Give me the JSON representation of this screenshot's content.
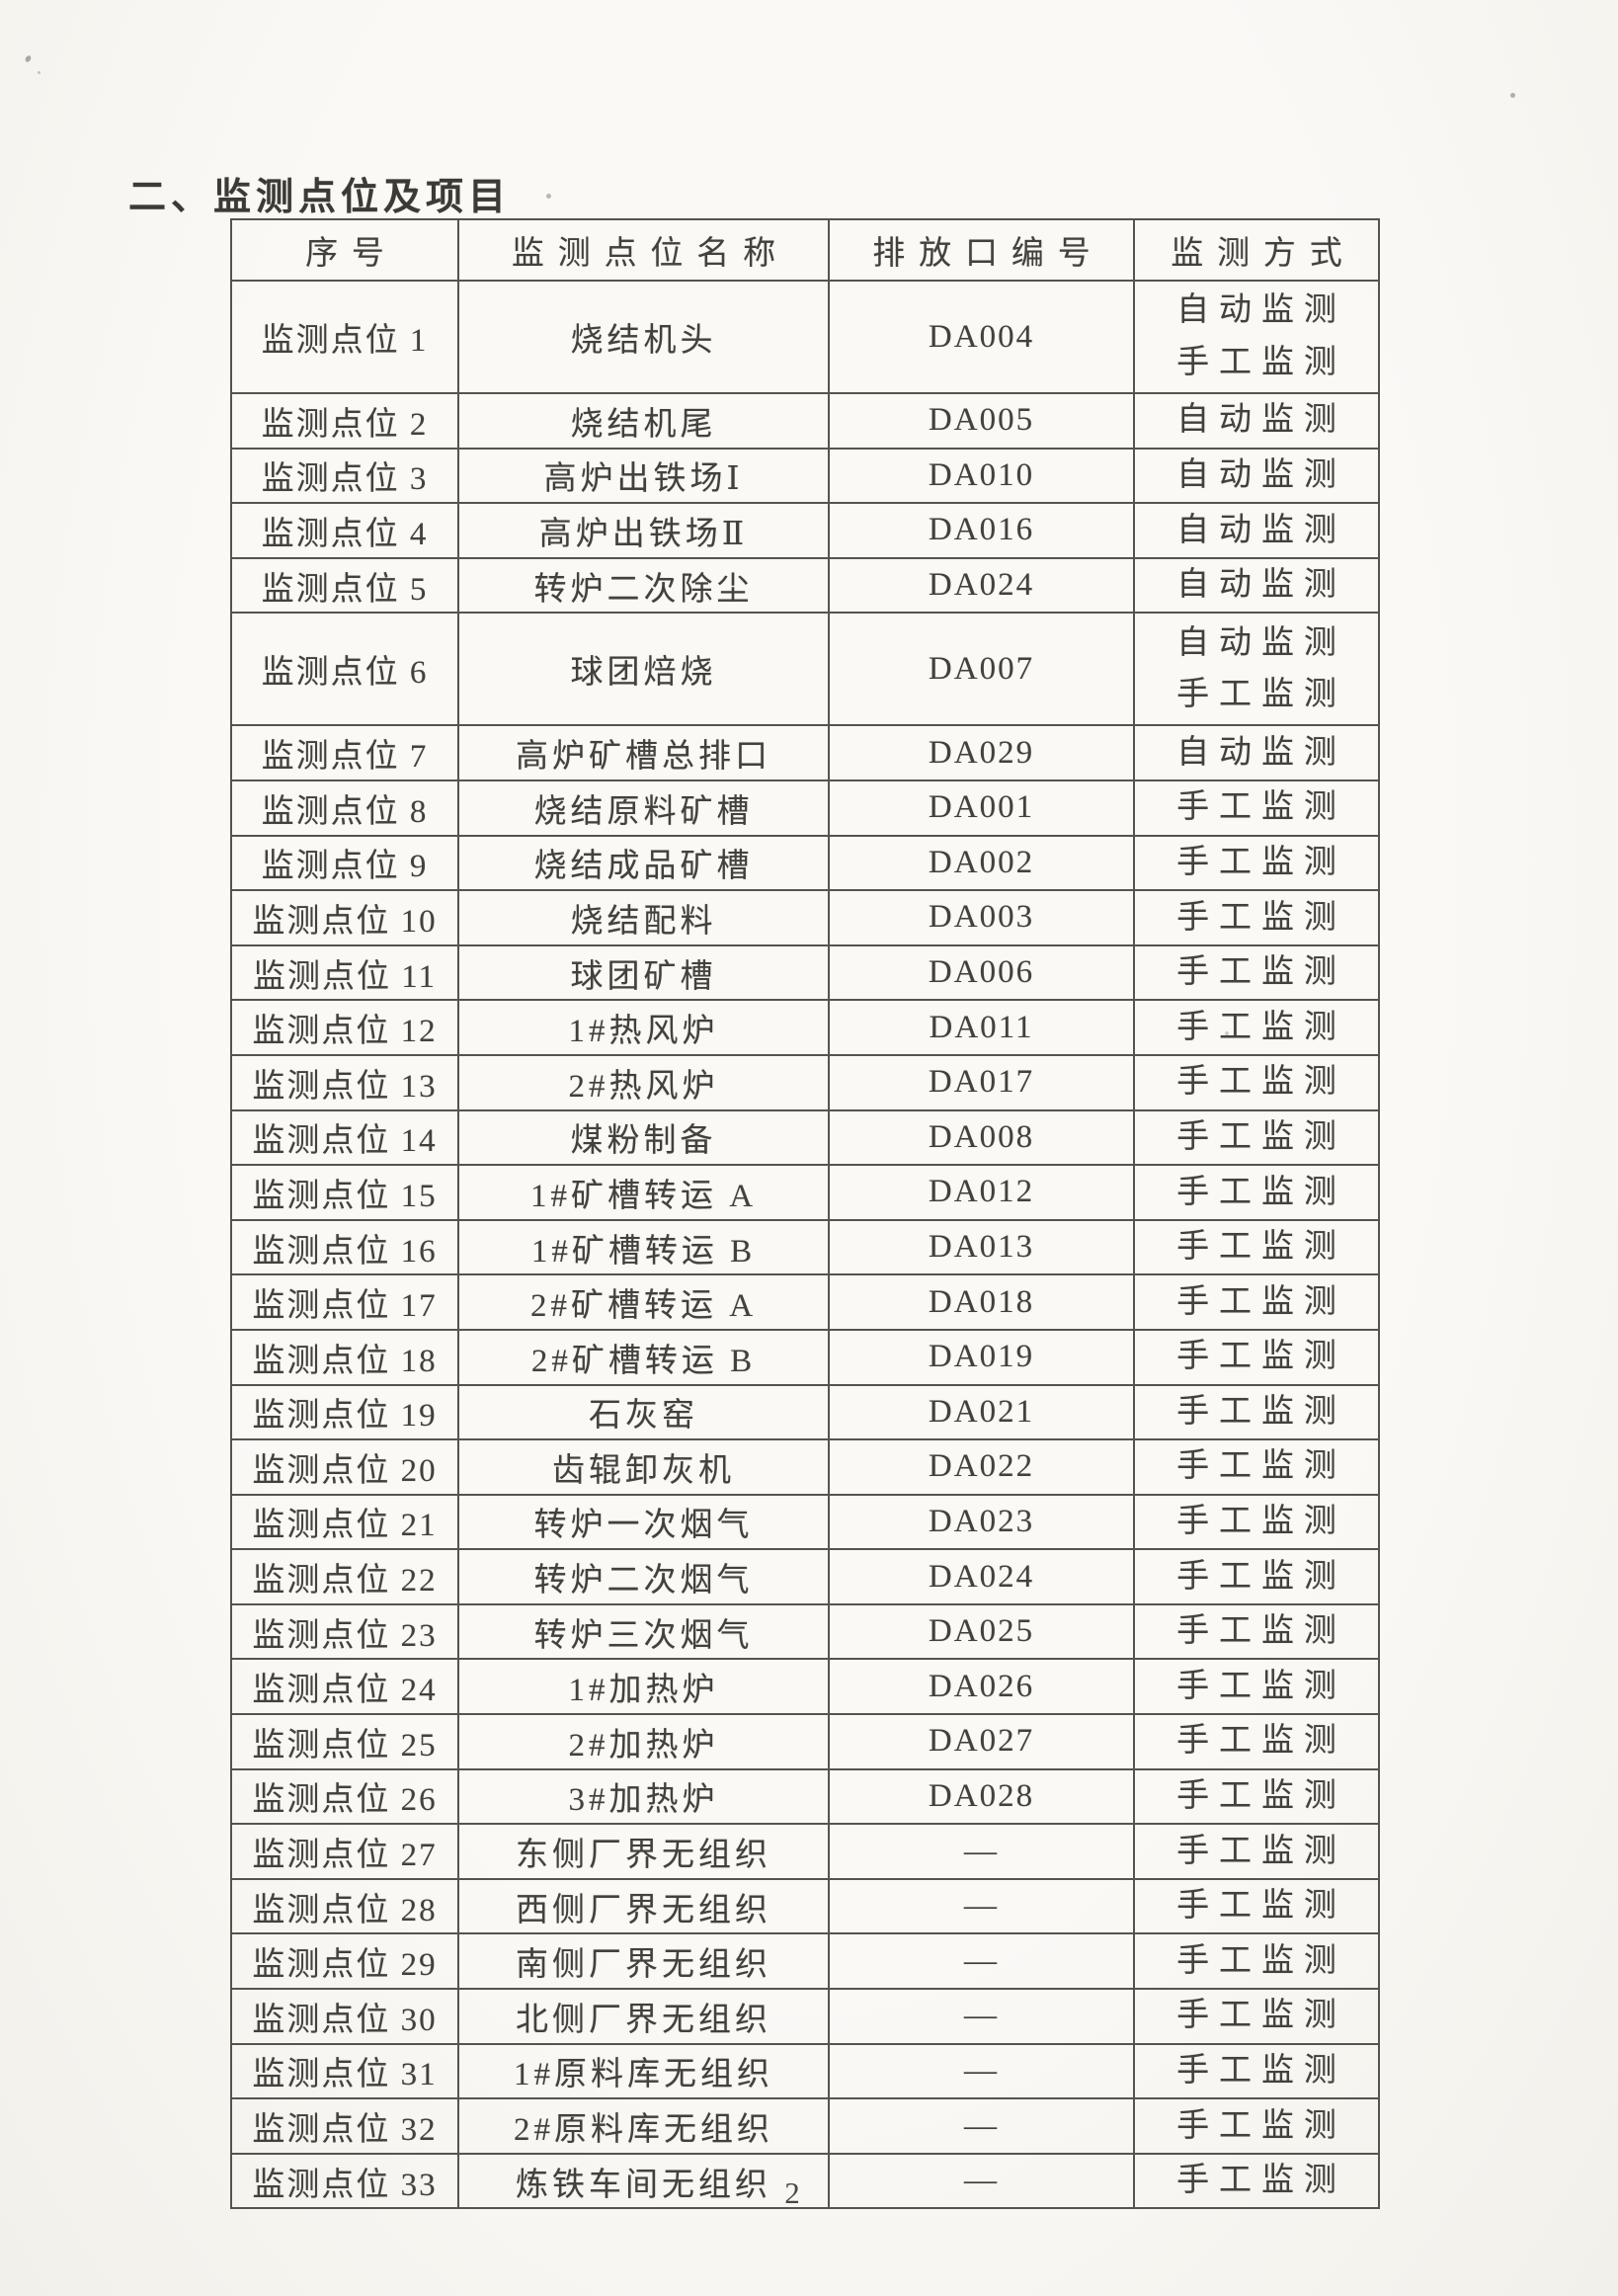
{
  "page": {
    "title": "二、监测点位及项目",
    "page_number": "2"
  },
  "table": {
    "headers": [
      "序号",
      "监测点位名称",
      "排放口编号",
      "监测方式"
    ],
    "rows": [
      {
        "seq": "监测点位 1",
        "name": "烧结机头",
        "outlet": "DA004",
        "methods": [
          "自动监测",
          "手工监测"
        ]
      },
      {
        "seq": "监测点位 2",
        "name": "烧结机尾",
        "outlet": "DA005",
        "methods": [
          "自动监测"
        ]
      },
      {
        "seq": "监测点位 3",
        "name": "高炉出铁场Ⅰ",
        "outlet": "DA010",
        "methods": [
          "自动监测"
        ]
      },
      {
        "seq": "监测点位 4",
        "name": "高炉出铁场Ⅱ",
        "outlet": "DA016",
        "methods": [
          "自动监测"
        ]
      },
      {
        "seq": "监测点位 5",
        "name": "转炉二次除尘",
        "outlet": "DA024",
        "methods": [
          "自动监测"
        ]
      },
      {
        "seq": "监测点位 6",
        "name": "球团焙烧",
        "outlet": "DA007",
        "methods": [
          "自动监测",
          "手工监测"
        ]
      },
      {
        "seq": "监测点位 7",
        "name": "高炉矿槽总排口",
        "outlet": "DA029",
        "methods": [
          "自动监测"
        ]
      },
      {
        "seq": "监测点位 8",
        "name": "烧结原料矿槽",
        "outlet": "DA001",
        "methods": [
          "手工监测"
        ]
      },
      {
        "seq": "监测点位 9",
        "name": "烧结成品矿槽",
        "outlet": "DA002",
        "methods": [
          "手工监测"
        ]
      },
      {
        "seq": "监测点位 10",
        "name": "烧结配料",
        "outlet": "DA003",
        "methods": [
          "手工监测"
        ]
      },
      {
        "seq": "监测点位 11",
        "name": "球团矿槽",
        "outlet": "DA006",
        "methods": [
          "手工监测"
        ]
      },
      {
        "seq": "监测点位 12",
        "name": "1#热风炉",
        "outlet": "DA011",
        "methods": [
          "手工监测"
        ]
      },
      {
        "seq": "监测点位 13",
        "name": "2#热风炉",
        "outlet": "DA017",
        "methods": [
          "手工监测"
        ]
      },
      {
        "seq": "监测点位 14",
        "name": "煤粉制备",
        "outlet": "DA008",
        "methods": [
          "手工监测"
        ]
      },
      {
        "seq": "监测点位 15",
        "name": "1#矿槽转运 A",
        "outlet": "DA012",
        "methods": [
          "手工监测"
        ]
      },
      {
        "seq": "监测点位 16",
        "name": "1#矿槽转运 B",
        "outlet": "DA013",
        "methods": [
          "手工监测"
        ]
      },
      {
        "seq": "监测点位 17",
        "name": "2#矿槽转运 A",
        "outlet": "DA018",
        "methods": [
          "手工监测"
        ]
      },
      {
        "seq": "监测点位 18",
        "name": "2#矿槽转运 B",
        "outlet": "DA019",
        "methods": [
          "手工监测"
        ]
      },
      {
        "seq": "监测点位 19",
        "name": "石灰窑",
        "outlet": "DA021",
        "methods": [
          "手工监测"
        ]
      },
      {
        "seq": "监测点位 20",
        "name": "齿辊卸灰机",
        "outlet": "DA022",
        "methods": [
          "手工监测"
        ]
      },
      {
        "seq": "监测点位 21",
        "name": "转炉一次烟气",
        "outlet": "DA023",
        "methods": [
          "手工监测"
        ]
      },
      {
        "seq": "监测点位 22",
        "name": "转炉二次烟气",
        "outlet": "DA024",
        "methods": [
          "手工监测"
        ]
      },
      {
        "seq": "监测点位 23",
        "name": "转炉三次烟气",
        "outlet": "DA025",
        "methods": [
          "手工监测"
        ]
      },
      {
        "seq": "监测点位 24",
        "name": "1#加热炉",
        "outlet": "DA026",
        "methods": [
          "手工监测"
        ]
      },
      {
        "seq": "监测点位 25",
        "name": "2#加热炉",
        "outlet": "DA027",
        "methods": [
          "手工监测"
        ]
      },
      {
        "seq": "监测点位 26",
        "name": "3#加热炉",
        "outlet": "DA028",
        "methods": [
          "手工监测"
        ]
      },
      {
        "seq": "监测点位 27",
        "name": "东侧厂界无组织",
        "outlet": "—",
        "methods": [
          "手工监测"
        ]
      },
      {
        "seq": "监测点位 28",
        "name": "西侧厂界无组织",
        "outlet": "—",
        "methods": [
          "手工监测"
        ]
      },
      {
        "seq": "监测点位 29",
        "name": "南侧厂界无组织",
        "outlet": "—",
        "methods": [
          "手工监测"
        ]
      },
      {
        "seq": "监测点位 30",
        "name": "北侧厂界无组织",
        "outlet": "—",
        "methods": [
          "手工监测"
        ]
      },
      {
        "seq": "监测点位 31",
        "name": "1#原料库无组织",
        "outlet": "—",
        "methods": [
          "手工监测"
        ]
      },
      {
        "seq": "监测点位 32",
        "name": "2#原料库无组织",
        "outlet": "—",
        "methods": [
          "手工监测"
        ]
      },
      {
        "seq": "监测点位 33",
        "name": "炼铁车间无组织",
        "outlet": "—",
        "methods": [
          "手工监测"
        ]
      }
    ]
  }
}
